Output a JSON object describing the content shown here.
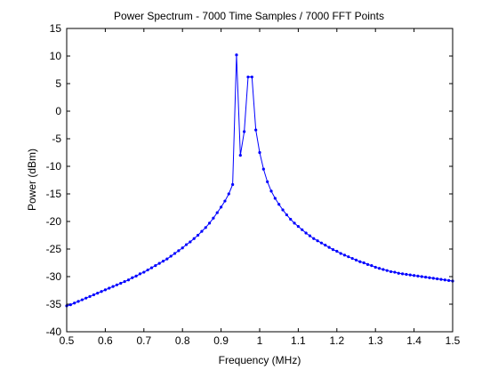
{
  "chart_data": {
    "type": "line",
    "title": "Power Spectrum - 7000 Time Samples / 7000 FFT Points",
    "xlabel": "Frequency (MHz)",
    "ylabel": "Power (dBm)",
    "xlim": [
      0.5,
      1.5
    ],
    "ylim": [
      -40,
      15
    ],
    "xticks": [
      0.5,
      0.6,
      0.7,
      0.8,
      0.9,
      1.0,
      1.1,
      1.2,
      1.3,
      1.4,
      1.5
    ],
    "xtick_labels": [
      "0.5",
      "0.6",
      "0.7",
      "0.8",
      "0.9",
      "1",
      "1.1",
      "1.2",
      "1.3",
      "1.4",
      "1.5"
    ],
    "yticks": [
      -40,
      -35,
      -30,
      -25,
      -20,
      -15,
      -10,
      -5,
      0,
      5,
      10,
      15
    ],
    "ytick_labels": [
      "-40",
      "-35",
      "-30",
      "-25",
      "-20",
      "-15",
      "-10",
      "-5",
      "0",
      "5",
      "10",
      "15"
    ],
    "grid": false,
    "legend": "none",
    "line_color": "#0000ff",
    "marker": "dot",
    "series": [
      {
        "x": [
          0.5,
          0.51,
          0.52,
          0.53,
          0.54,
          0.55,
          0.56,
          0.57,
          0.58,
          0.59,
          0.6,
          0.61,
          0.62,
          0.63,
          0.64,
          0.65,
          0.66,
          0.67,
          0.68,
          0.69,
          0.7,
          0.71,
          0.72,
          0.73,
          0.74,
          0.75,
          0.76,
          0.77,
          0.78,
          0.79,
          0.8,
          0.81,
          0.82,
          0.83,
          0.84,
          0.85,
          0.86,
          0.87,
          0.88,
          0.89,
          0.9,
          0.91,
          0.92,
          0.93,
          0.94,
          0.95,
          0.96,
          0.97,
          0.98,
          0.99,
          1.0,
          1.01,
          1.02,
          1.03,
          1.04,
          1.05,
          1.06,
          1.07,
          1.08,
          1.09,
          1.1,
          1.11,
          1.12,
          1.13,
          1.14,
          1.15,
          1.16,
          1.17,
          1.18,
          1.19,
          1.2,
          1.21,
          1.22,
          1.23,
          1.24,
          1.25,
          1.26,
          1.27,
          1.28,
          1.29,
          1.3,
          1.31,
          1.32,
          1.33,
          1.34,
          1.35,
          1.36,
          1.37,
          1.38,
          1.39,
          1.4,
          1.41,
          1.42,
          1.43,
          1.44,
          1.45,
          1.46,
          1.47,
          1.48,
          1.49,
          1.5
        ],
        "y": [
          -35.3,
          -35.1,
          -34.8,
          -34.5,
          -34.2,
          -33.9,
          -33.6,
          -33.3,
          -33.0,
          -32.7,
          -32.4,
          -32.1,
          -31.8,
          -31.5,
          -31.2,
          -30.9,
          -30.6,
          -30.2,
          -29.9,
          -29.5,
          -29.2,
          -28.8,
          -28.4,
          -28.0,
          -27.6,
          -27.2,
          -26.8,
          -26.3,
          -25.8,
          -25.3,
          -24.8,
          -24.2,
          -23.7,
          -23.1,
          -22.5,
          -21.8,
          -21.1,
          -20.3,
          -19.4,
          -18.4,
          -17.4,
          -16.3,
          -15.0,
          -13.3,
          10.2,
          -8.0,
          -3.7,
          6.2,
          6.2,
          -3.4,
          -7.5,
          -10.5,
          -12.8,
          -14.5,
          -15.8,
          -16.9,
          -17.9,
          -18.8,
          -19.6,
          -20.3,
          -20.9,
          -21.5,
          -22.1,
          -22.6,
          -23.1,
          -23.5,
          -23.9,
          -24.3,
          -24.7,
          -25.1,
          -25.4,
          -25.8,
          -26.1,
          -26.4,
          -26.7,
          -27.0,
          -27.3,
          -27.5,
          -27.8,
          -28.0,
          -28.3,
          -28.5,
          -28.7,
          -28.9,
          -29.1,
          -29.2,
          -29.4,
          -29.5,
          -29.6,
          -29.7,
          -29.8,
          -29.9,
          -30.0,
          -30.1,
          -30.2,
          -30.3,
          -30.4,
          -30.5,
          -30.6,
          -30.7,
          -30.8
        ]
      }
    ]
  }
}
